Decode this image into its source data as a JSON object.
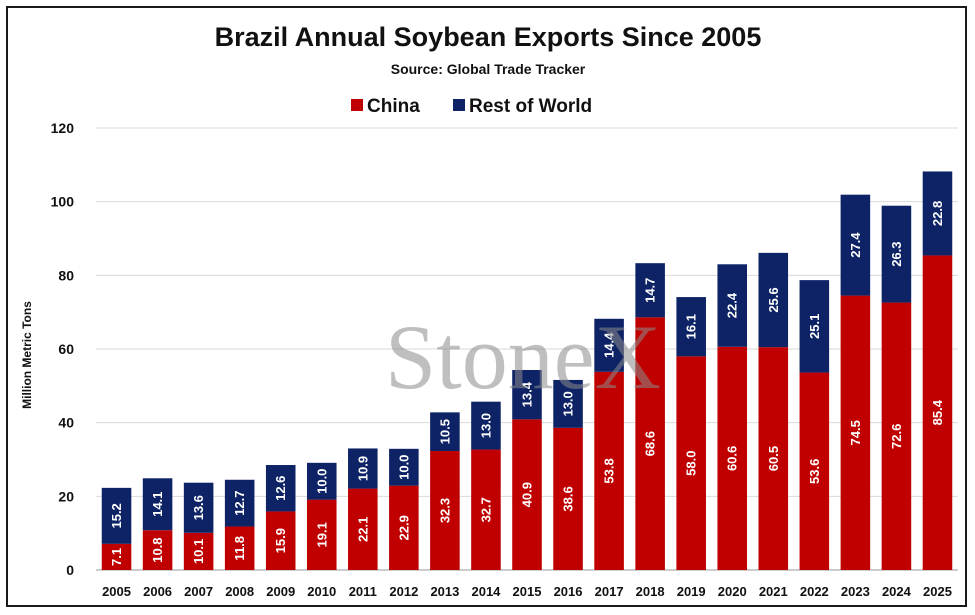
{
  "chart_data": {
    "type": "bar",
    "stacked": true,
    "title": "Brazil Annual Soybean Exports Since 2005",
    "subtitle": "Source: Global Trade Tracker",
    "xlabel": "",
    "ylabel": "Million Metric Tons",
    "ylim": [
      0,
      120
    ],
    "yticks": [
      0,
      20,
      40,
      60,
      80,
      100,
      120
    ],
    "grid": true,
    "legend_position": "top",
    "watermark": "StoneX",
    "categories": [
      "2005",
      "2006",
      "2007",
      "2008",
      "2009",
      "2010",
      "2011",
      "2012",
      "2013",
      "2014",
      "2015",
      "2016",
      "2017",
      "2018",
      "2019",
      "2020",
      "2021",
      "2022",
      "2023",
      "2024",
      "2025"
    ],
    "series": [
      {
        "name": "China",
        "color": "#c00000",
        "values": [
          7.1,
          10.8,
          10.1,
          11.8,
          15.9,
          19.1,
          22.1,
          22.9,
          32.3,
          32.7,
          40.9,
          38.6,
          53.8,
          68.6,
          58.0,
          60.6,
          60.5,
          53.6,
          74.5,
          72.6,
          85.4
        ],
        "labels": [
          "7.1",
          "10.8",
          "10.1",
          "11.8",
          "15.9",
          "19.1",
          "22.1",
          "22.9",
          "32.3",
          "32.7",
          "40.9",
          "38.6",
          "53.8",
          "68.6",
          "58.0",
          "60.6",
          "60.5",
          "53.6",
          "74.5",
          "72.6",
          "85.4"
        ]
      },
      {
        "name": "Rest of World",
        "color": "#0d2366",
        "values": [
          15.2,
          14.1,
          13.6,
          12.7,
          12.6,
          10.0,
          10.9,
          10.0,
          10.5,
          13.0,
          13.4,
          13.0,
          14.4,
          14.7,
          16.1,
          22.4,
          25.6,
          25.1,
          27.4,
          26.3,
          22.8
        ],
        "labels": [
          "15.2",
          "14.1",
          "13.6",
          "12.7",
          "12.6",
          "10.0",
          "10.9",
          "10.0",
          "10.5",
          "13.0",
          "13.4",
          "13.0",
          "14.4",
          "14.7",
          "16.1",
          "22.4",
          "25.6",
          "25.1",
          "27.4",
          "26.3",
          "22.8"
        ]
      }
    ]
  }
}
